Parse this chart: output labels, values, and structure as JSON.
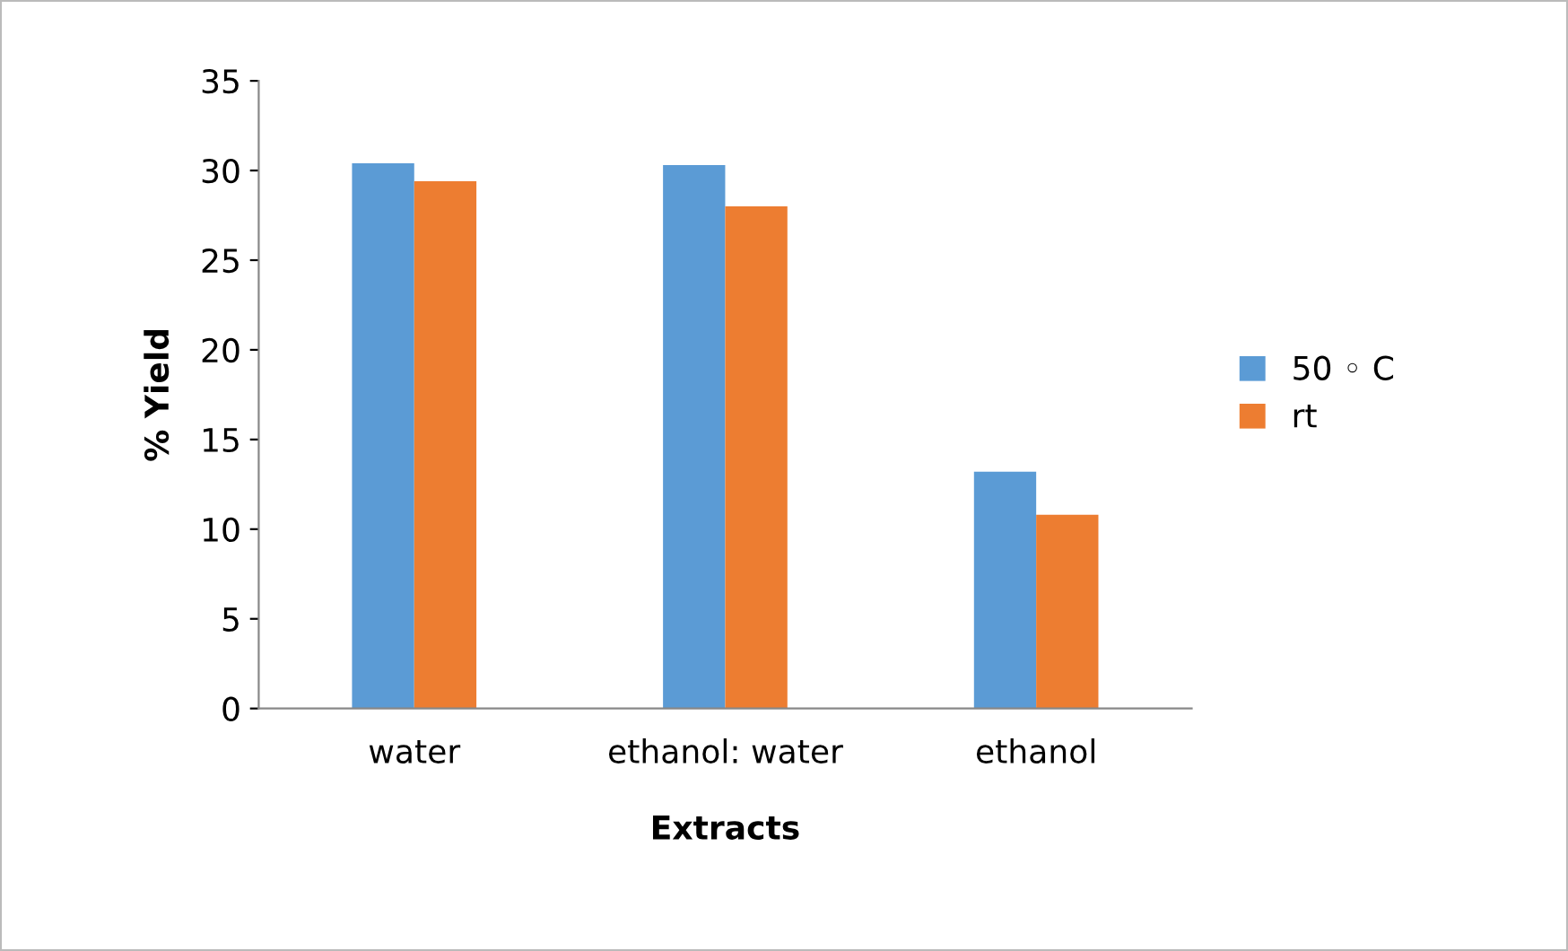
{
  "chart_data": {
    "type": "bar",
    "xlabel": "Extracts",
    "ylabel": "% Yield",
    "categories": [
      "water",
      "ethanol: water",
      "ethanol"
    ],
    "series": [
      {
        "name": "50 ◦ C",
        "color": "#5b9bd5",
        "values": [
          30.4,
          30.3,
          13.2
        ]
      },
      {
        "name": "rt",
        "color": "#ed7d31",
        "values": [
          29.4,
          28.0,
          10.8
        ]
      }
    ],
    "ylim": [
      0,
      35
    ],
    "yticks": [
      0,
      5,
      10,
      15,
      20,
      25,
      30,
      35
    ],
    "grid": false,
    "legend": "right"
  }
}
